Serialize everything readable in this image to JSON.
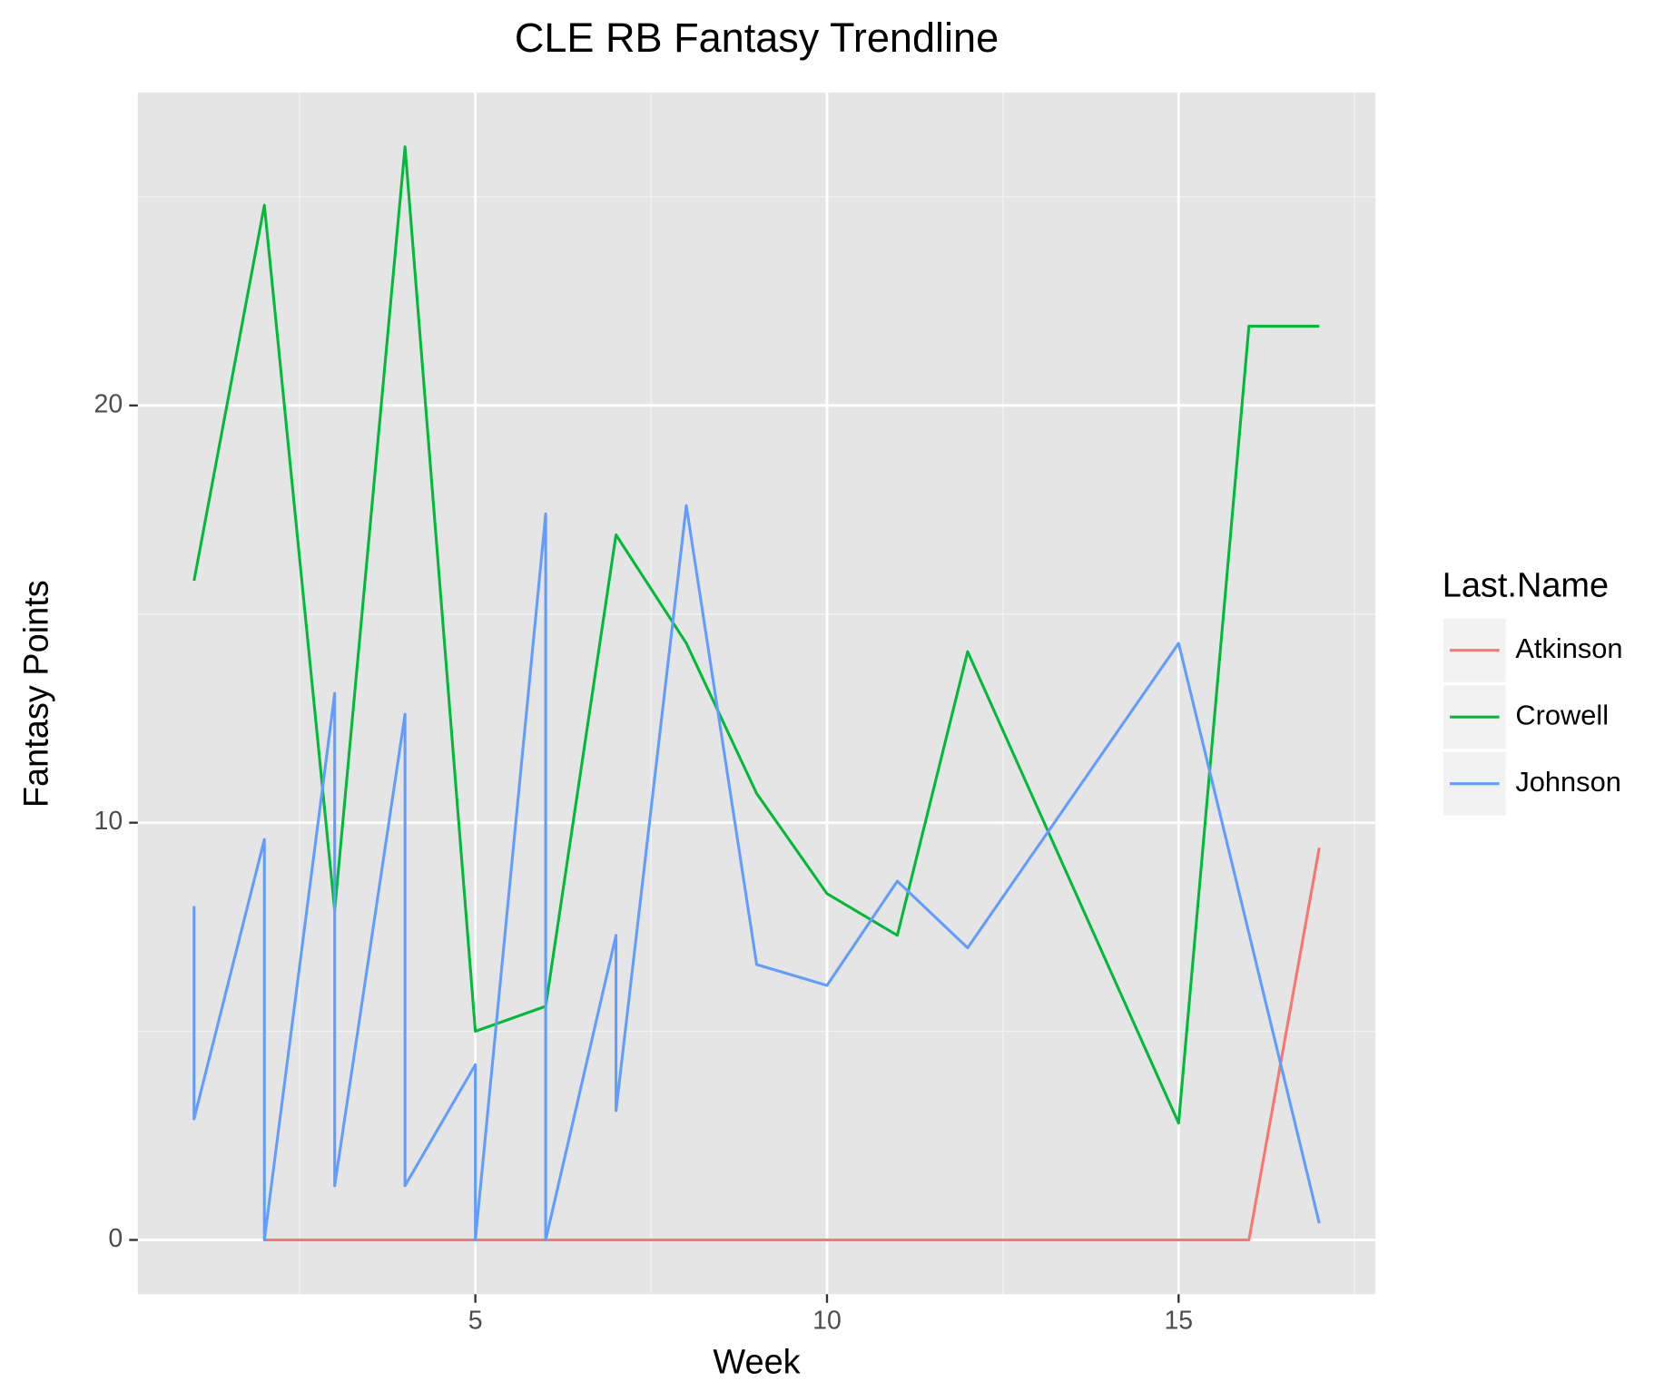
{
  "chart_data": {
    "type": "line",
    "title": "CLE RB Fantasy Trendline",
    "x_label": "Week",
    "y_label": "Fantasy Points",
    "legend_title": "Last.Name",
    "legend_position": "right",
    "grid": true,
    "xlim": [
      0.2,
      17.8
    ],
    "ylim": [
      -1.3,
      27.5
    ],
    "xticks": [
      5,
      10,
      15
    ],
    "yticks": [
      0,
      10,
      20
    ],
    "series": [
      {
        "name": "Atkinson",
        "color": "#F8766D",
        "x": [
          2,
          3,
          4,
          5,
          6,
          7,
          8,
          9,
          10,
          11,
          12,
          15,
          16,
          17
        ],
        "values": [
          0,
          0,
          0,
          0,
          0,
          0,
          0,
          0,
          0,
          0,
          0,
          0,
          0,
          9.4
        ]
      },
      {
        "name": "Crowell",
        "color": "#00BA38",
        "x": [
          1,
          2,
          3,
          4,
          5,
          6,
          7,
          8,
          9,
          10,
          11,
          12,
          15,
          16,
          17
        ],
        "values": [
          15.8,
          24.8,
          7.9,
          26.2,
          5.0,
          5.6,
          16.9,
          14.3,
          10.7,
          8.3,
          7.3,
          14.1,
          2.8,
          21.9,
          21.9
        ]
      },
      {
        "name": "Johnson",
        "color": "#619CFF",
        "x": [
          1,
          1,
          2,
          2,
          3,
          3,
          4,
          4,
          5,
          5,
          6,
          6,
          7,
          7,
          8,
          9,
          10,
          11,
          12,
          15,
          17
        ],
        "values": [
          8.0,
          2.9,
          9.6,
          0,
          13.1,
          1.3,
          12.6,
          1.3,
          4.2,
          0,
          17.4,
          0,
          7.3,
          3.1,
          17.6,
          6.6,
          6.1,
          8.6,
          7.0,
          14.3,
          0.4
        ]
      }
    ]
  }
}
